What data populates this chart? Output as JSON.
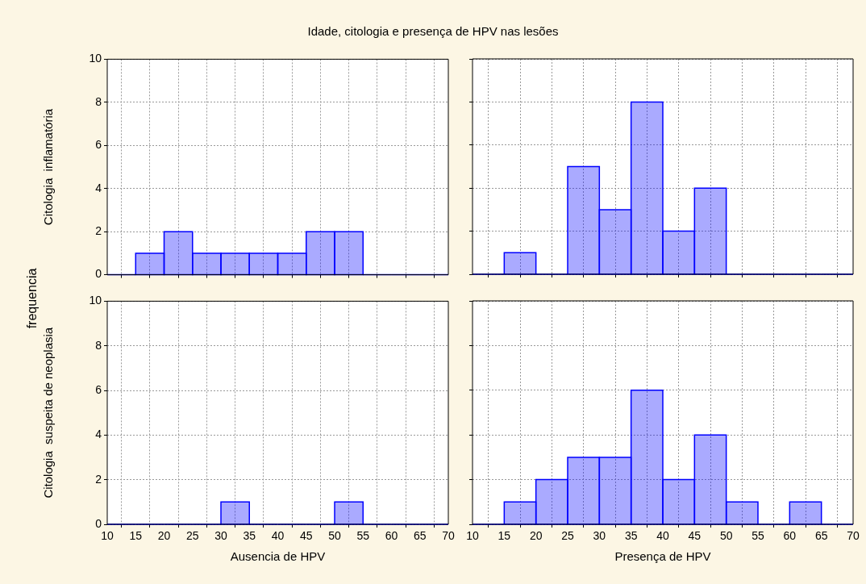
{
  "chart_data": [
    {
      "type": "histogram",
      "title": "Idade, citologia e presença de HPV nas lesões",
      "annotations": [
        "frequencia"
      ],
      "ylabel": "Citologia  inflamatória",
      "bins": [
        10,
        15,
        20,
        25,
        30,
        35,
        40,
        45,
        50,
        55,
        60,
        65,
        70
      ],
      "values": [
        0,
        1,
        2,
        1,
        1,
        1,
        1,
        2,
        2,
        0,
        0,
        0
      ],
      "color": "#0000ff",
      "xlim": [
        10,
        70
      ],
      "xticks": [
        10,
        15,
        20,
        25,
        30,
        35,
        40,
        45,
        50,
        55,
        60,
        65,
        70
      ],
      "ylim": [
        0,
        10
      ],
      "yticks": [
        0,
        2,
        4,
        6,
        8,
        10
      ],
      "grid": true,
      "tick_labels": "y"
    },
    {
      "type": "histogram",
      "bins": [
        10,
        15,
        20,
        25,
        30,
        35,
        40,
        45,
        50,
        55,
        60,
        65,
        70
      ],
      "values": [
        0,
        1,
        0,
        5,
        3,
        8,
        2,
        4,
        0,
        0,
        0,
        0
      ],
      "color": "#0000ff",
      "xlim": [
        10,
        70
      ],
      "xticks": [
        10,
        15,
        20,
        25,
        30,
        35,
        40,
        45,
        50,
        55,
        60,
        65,
        70
      ],
      "ylim": [
        0,
        10
      ],
      "yticks": [
        0,
        2,
        4,
        6,
        8,
        10
      ],
      "grid": true,
      "tick_labels": false
    },
    {
      "type": "histogram",
      "ylabel": "Citologia  suspeita de neoplasia",
      "xlabel": "Ausencia de HPV",
      "bins": [
        10,
        15,
        20,
        25,
        30,
        35,
        40,
        45,
        50,
        55,
        60,
        65,
        70
      ],
      "values": [
        0,
        0,
        0,
        0,
        1,
        0,
        0,
        0,
        1,
        0,
        0,
        0
      ],
      "color": "#0000ff",
      "xlim": [
        10,
        70
      ],
      "xticks": [
        10,
        15,
        20,
        25,
        30,
        35,
        40,
        45,
        50,
        55,
        60,
        65,
        70
      ],
      "ylim": [
        0,
        10
      ],
      "yticks": [
        0,
        2,
        4,
        6,
        8,
        10
      ],
      "grid": true
    },
    {
      "type": "histogram",
      "xlabel": "Presença de HPV",
      "bins": [
        10,
        15,
        20,
        25,
        30,
        35,
        40,
        45,
        50,
        55,
        60,
        65,
        70
      ],
      "values": [
        0,
        1,
        2,
        3,
        3,
        6,
        2,
        4,
        1,
        0,
        1,
        0
      ],
      "color": "#0000ff",
      "xlim": [
        10,
        70
      ],
      "xticks": [
        10,
        15,
        20,
        25,
        30,
        35,
        40,
        45,
        50,
        55,
        60,
        65,
        70
      ],
      "ylim": [
        0,
        10
      ],
      "yticks": [
        0,
        2,
        4,
        6,
        8,
        10
      ],
      "grid": true,
      "tick_labels": "x"
    }
  ]
}
